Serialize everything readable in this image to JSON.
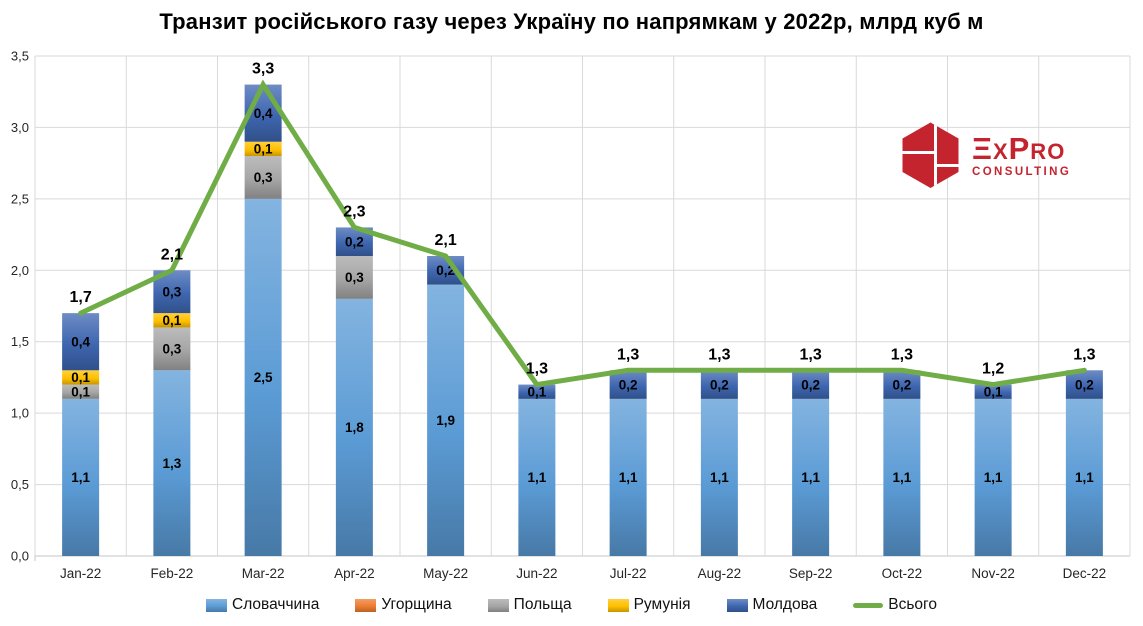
{
  "title": "Транзит російського газу через Україну по напрямкам у 2022р, млрд куб м",
  "logo": {
    "brand": "ExPro",
    "subtitle": "CONSULTING",
    "color": "#C4242E"
  },
  "chart_data": {
    "type": "bar",
    "subtype": "stacked-bars-with-total-line",
    "title": "Транзит російського газу через Україну по напрямкам у 2022р, млрд куб м",
    "unit": "млрд куб м",
    "categories": [
      "Jan-22",
      "Feb-22",
      "Mar-22",
      "Apr-22",
      "May-22",
      "Jun-22",
      "Jul-22",
      "Aug-22",
      "Sep-22",
      "Oct-22",
      "Nov-22",
      "Dec-22"
    ],
    "series": [
      {
        "name": "Словаччина",
        "color": "#5B9BD5",
        "values": [
          1.1,
          1.3,
          2.5,
          1.8,
          1.9,
          1.1,
          1.1,
          1.1,
          1.1,
          1.1,
          1.1,
          1.1
        ]
      },
      {
        "name": "Угорщина",
        "color": "#ED7D31",
        "values": [
          0,
          0,
          0,
          0,
          0,
          0,
          0,
          0,
          0,
          0,
          0,
          0
        ]
      },
      {
        "name": "Польща",
        "color": "#A5A5A5",
        "values": [
          0.1,
          0.3,
          0.3,
          0.3,
          0,
          0,
          0,
          0,
          0,
          0,
          0,
          0
        ]
      },
      {
        "name": "Румунія",
        "color": "#FFC000",
        "values": [
          0.1,
          0.1,
          0.1,
          0,
          0,
          0,
          0,
          0,
          0,
          0,
          0,
          0
        ]
      },
      {
        "name": "Молдова",
        "color": "#3E66B0",
        "values": [
          0.4,
          0.3,
          0.4,
          0.2,
          0.2,
          0.1,
          0.2,
          0.2,
          0.2,
          0.2,
          0.1,
          0.2
        ]
      }
    ],
    "line_series": {
      "name": "Всього",
      "color": "#70AD47",
      "values": [
        1.7,
        2.1,
        3.3,
        2.3,
        2.1,
        1.3,
        1.3,
        1.3,
        1.3,
        1.3,
        1.2,
        1.3
      ]
    },
    "total_labels": [
      "1,7",
      "2,1",
      "3,3",
      "2,3",
      "2,1",
      "1,3",
      "1,3",
      "1,3",
      "1,3",
      "1,3",
      "1,2",
      "1,3"
    ],
    "y_ticks": {
      "values": [
        0,
        0.5,
        1.0,
        1.5,
        2.0,
        2.5,
        3.0,
        3.5
      ],
      "labels": [
        "0,0",
        "0,5",
        "1,0",
        "1,5",
        "2,0",
        "2,5",
        "3,0",
        "3,5"
      ]
    },
    "ylim": [
      0,
      3.5
    ],
    "grid": true,
    "legend_position": "bottom",
    "decimal_separator": ","
  }
}
